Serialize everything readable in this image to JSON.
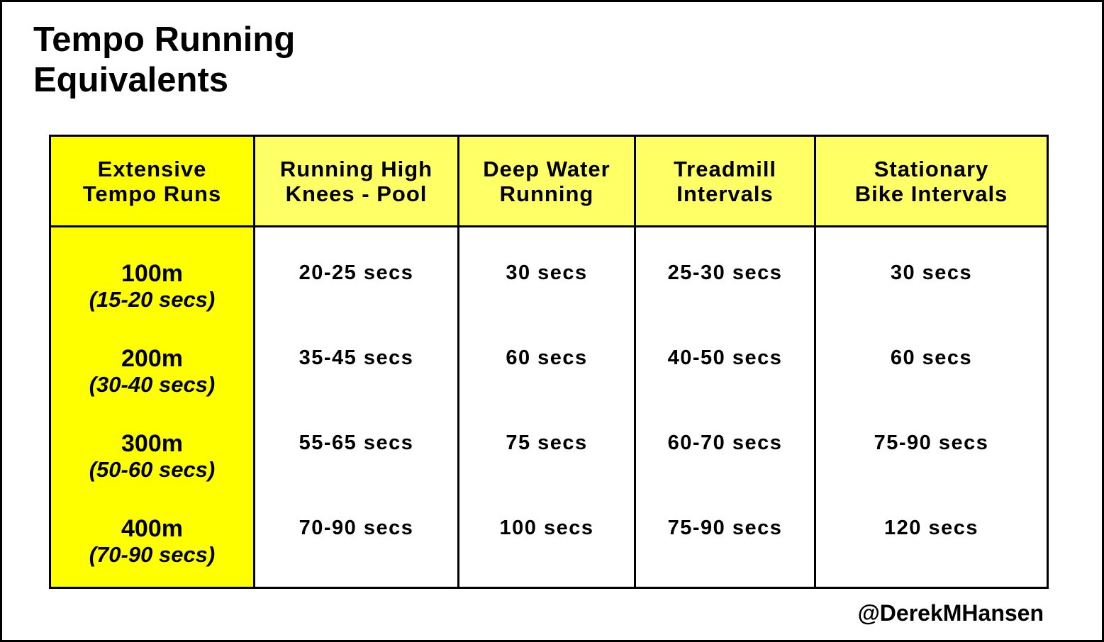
{
  "title": {
    "line1": "Tempo Running",
    "line2": "Equivalents"
  },
  "table": {
    "headers": [
      {
        "line1": "Extensive",
        "line2": "Tempo Runs"
      },
      {
        "line1": "Running High",
        "line2": "Knees - Pool"
      },
      {
        "line1": "Deep Water",
        "line2": "Running"
      },
      {
        "line1": "Treadmill",
        "line2": "Intervals"
      },
      {
        "line1": "Stationary",
        "line2": "Bike Intervals"
      }
    ],
    "rows": [
      {
        "distance": "100m",
        "time": "(15-20 secs)",
        "values": [
          "20-25 secs",
          "30 secs",
          "25-30 secs",
          "30 secs"
        ]
      },
      {
        "distance": "200m",
        "time": "(30-40 secs)",
        "values": [
          "35-45 secs",
          "60 secs",
          "40-50 secs",
          "60 secs"
        ]
      },
      {
        "distance": "300m",
        "time": "(50-60 secs)",
        "values": [
          "55-65 secs",
          "75 secs",
          "60-70 secs",
          "75-90 secs"
        ]
      },
      {
        "distance": "400m",
        "time": "(70-90 secs)",
        "values": [
          "70-90 secs",
          "100 secs",
          "75-90 secs",
          "120 secs"
        ]
      }
    ]
  },
  "credit": "@DerekMHansen",
  "colors": {
    "first_column": "#ffff00",
    "header_row": "#ffff66",
    "border": "#000000",
    "background": "#ffffff"
  }
}
